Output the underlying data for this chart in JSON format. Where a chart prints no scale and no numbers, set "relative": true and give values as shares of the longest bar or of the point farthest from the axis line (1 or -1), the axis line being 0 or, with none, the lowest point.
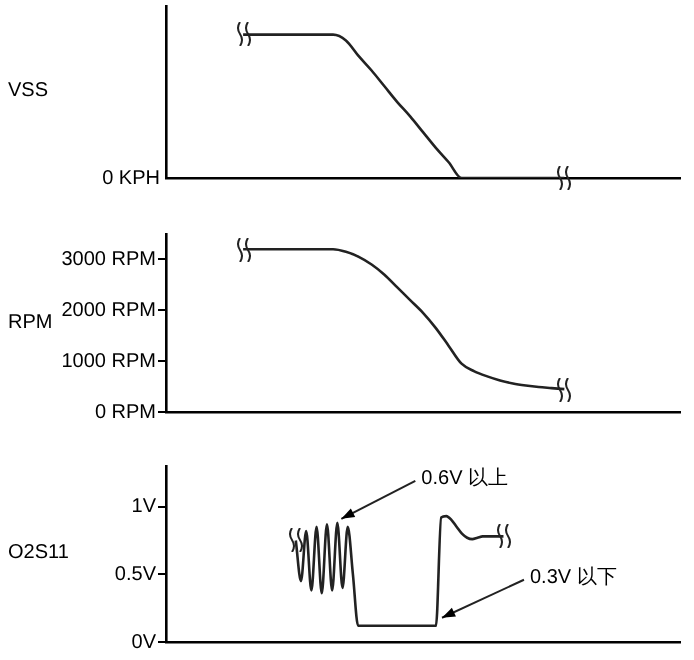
{
  "chart_data": [
    {
      "type": "line",
      "relative": true,
      "ylabel": "VSS",
      "color": "#222222",
      "annotations": [
        "0 KPH"
      ],
      "categories": [
        null,
        null,
        null,
        null,
        null,
        null,
        null,
        null,
        null,
        null,
        null,
        null,
        null,
        null,
        null,
        null,
        null,
        null,
        null,
        null,
        null,
        null,
        null,
        null,
        null,
        null,
        null,
        null,
        null,
        null,
        null,
        null,
        null,
        null,
        null,
        null,
        null,
        null,
        null,
        null,
        null
      ],
      "values": [
        null,
        null,
        null,
        null,
        null,
        null,
        1,
        1,
        1,
        1,
        1,
        1,
        1,
        1,
        0.96,
        0.85,
        0.75,
        0.64,
        0.53,
        0.43,
        0.32,
        0.21,
        0.11,
        0,
        0,
        0,
        0,
        0,
        0,
        0,
        0,
        0,
        null,
        null,
        null,
        null,
        null,
        null,
        null,
        null,
        null
      ]
    },
    {
      "type": "line",
      "ylabel": "RPM",
      "color": "#222222",
      "ylim": [
        0,
        3500
      ],
      "yticks": [
        {
          "value": 0,
          "label": "0 RPM"
        },
        {
          "value": 1000,
          "label": "1000 RPM"
        },
        {
          "value": 2000,
          "label": "2000 RPM"
        },
        {
          "value": 3000,
          "label": "3000 RPM"
        }
      ],
      "categories": [
        null,
        null,
        null,
        null,
        null,
        null,
        null,
        null,
        null,
        null,
        null,
        null,
        null,
        null,
        null,
        null,
        null,
        null,
        null,
        null,
        null,
        null,
        null,
        null,
        null,
        null,
        null,
        null,
        null,
        null,
        null,
        null,
        null,
        null,
        null,
        null,
        null,
        null,
        null,
        null,
        null
      ],
      "values": [
        null,
        null,
        null,
        null,
        null,
        null,
        3200,
        3200,
        3200,
        3200,
        3200,
        3200,
        3200,
        3200,
        3150,
        3050,
        2900,
        2700,
        2450,
        2200,
        1950,
        1650,
        1300,
        950,
        800,
        700,
        620,
        560,
        520,
        490,
        470,
        450,
        null,
        null,
        null,
        null,
        null,
        null,
        null,
        null,
        null
      ]
    },
    {
      "type": "line",
      "ylabel": "O2S11",
      "color": "#222222",
      "ylim": [
        0,
        1.3
      ],
      "yticks": [
        {
          "value": 0,
          "label": "0V"
        },
        {
          "value": 0.5,
          "label": "0.5V"
        },
        {
          "value": 1,
          "label": "1V"
        }
      ],
      "annotations": [
        "0.6V 以上",
        "0.3V 以下"
      ],
      "categories": [
        null,
        null,
        null,
        null,
        null,
        null,
        null,
        null,
        null,
        null,
        null,
        null,
        null,
        null,
        null,
        null,
        null,
        null,
        null,
        null,
        null,
        null,
        null,
        null,
        null,
        null,
        null,
        null,
        null,
        null,
        null,
        null,
        null,
        null,
        null,
        null,
        null,
        null,
        null,
        null,
        null,
        null,
        null,
        null,
        null,
        null,
        null,
        null,
        null,
        null,
        null,
        null,
        null,
        null,
        null,
        null,
        null,
        null,
        null,
        null,
        null,
        null,
        null,
        null,
        null,
        null,
        null,
        null,
        null,
        null,
        null,
        null,
        null,
        null,
        null,
        null,
        null,
        null,
        null,
        null,
        null,
        null,
        null,
        null,
        null,
        null,
        null,
        null,
        null,
        null,
        null,
        null,
        null,
        null,
        null,
        null,
        null,
        null,
        null,
        null
      ],
      "values": [
        null,
        null,
        null,
        null,
        null,
        null,
        null,
        null,
        null,
        null,
        null,
        null,
        null,
        null,
        null,
        null,
        null,
        null,
        null,
        null,
        null,
        null,
        null,
        null,
        null,
        0.75,
        0.45,
        0.82,
        0.38,
        0.85,
        0.36,
        0.87,
        0.38,
        0.88,
        0.4,
        0.85,
        0.5,
        0.12,
        0.12,
        0.12,
        0.12,
        0.12,
        0.12,
        0.12,
        0.12,
        0.12,
        0.12,
        0.12,
        0.12,
        0.12,
        0.12,
        0.12,
        0.12,
        0.92,
        0.93,
        0.9,
        0.85,
        0.8,
        0.77,
        0.76,
        0.77,
        0.78,
        0.78,
        0.78,
        0.78,
        0.78,
        null,
        null,
        null,
        null,
        null,
        null,
        null,
        null,
        null,
        null,
        null,
        null,
        null,
        null,
        null,
        null,
        null,
        null,
        null,
        null,
        null,
        null,
        null,
        null,
        null,
        null,
        null,
        null,
        null,
        null,
        null,
        null,
        null,
        null
      ]
    }
  ]
}
